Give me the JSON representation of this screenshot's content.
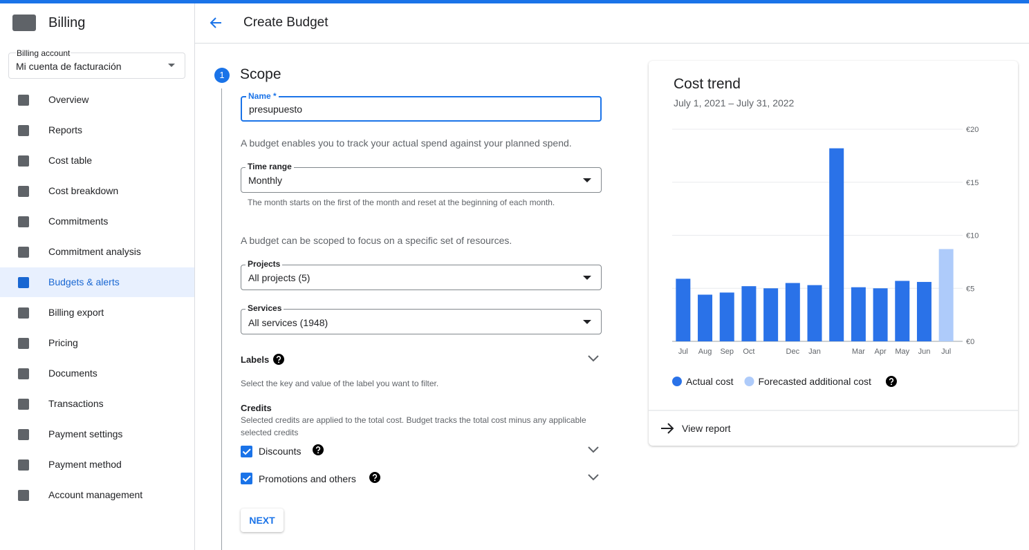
{
  "sidebar": {
    "title": "Billing",
    "account_label": "Billing account",
    "account_value": "Mi cuenta de facturación",
    "nav": [
      "Overview",
      "Reports",
      "Cost table",
      "Cost breakdown",
      "Commitments",
      "Commitment analysis",
      "Budgets & alerts",
      "Billing export",
      "Pricing",
      "Documents",
      "Transactions",
      "Payment settings",
      "Payment method",
      "Account management"
    ]
  },
  "header": {
    "title": "Create Budget"
  },
  "form": {
    "step": "1",
    "section": "Scope",
    "name_label": "Name *",
    "name_value": "presupuesto",
    "name_help": "A budget enables you to track your actual spend against your planned spend.",
    "time_label": "Time range",
    "time_value": "Monthly",
    "time_help": "The month starts on the first of the month and reset at the beginning of each month.",
    "scope_help": "A budget can be scoped to focus on a specific set of resources.",
    "projects_label": "Projects",
    "projects_value": "All projects (5)",
    "services_label": "Services",
    "services_value": "All services (1948)",
    "labels_title": "Labels",
    "labels_help": "Select the key and value of the label you want to filter.",
    "credits_title": "Credits",
    "credits_help": "Selected credits are applied to the total cost. Budget tracks the total cost minus any applicable selected credits",
    "discounts": "Discounts",
    "promotions": "Promotions and others",
    "next": "NEXT"
  },
  "chart_data": {
    "type": "bar",
    "title": "Cost trend",
    "subtitle": "July 1, 2021 – July 31, 2022",
    "categories": [
      "Jul",
      "Aug",
      "Sep",
      "Oct",
      null,
      "Dec",
      "Jan",
      null,
      "Mar",
      "Apr",
      "May",
      "Jun",
      "Jul"
    ],
    "series": [
      {
        "name": "Actual cost",
        "color": "#2a72e8",
        "values": [
          5.9,
          4.4,
          4.6,
          5.2,
          5.0,
          5.5,
          5.3,
          18.2,
          5.1,
          5.0,
          5.7,
          5.6,
          null
        ]
      },
      {
        "name": "Forecasted additional cost",
        "color": "#aecbfa",
        "values": [
          null,
          null,
          null,
          null,
          null,
          null,
          null,
          null,
          null,
          null,
          null,
          null,
          8.7
        ]
      }
    ],
    "ylim": [
      0,
      20
    ],
    "yticks": [
      {
        "value": 0,
        "label": "€0"
      },
      {
        "value": 5,
        "label": "€5"
      },
      {
        "value": 10,
        "label": "€10"
      },
      {
        "value": 15,
        "label": "€15"
      },
      {
        "value": 20,
        "label": "€20"
      }
    ],
    "grid": true,
    "link": "View report"
  }
}
